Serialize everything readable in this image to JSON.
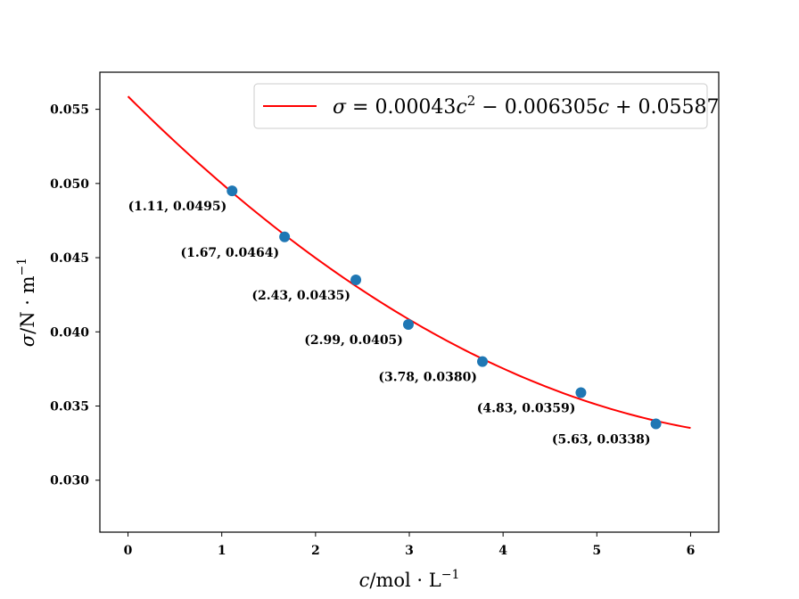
{
  "chart_data": {
    "type": "scatter",
    "title": "",
    "xlabel": {
      "var": "c",
      "rest": "/mol · L",
      "sup": "−1"
    },
    "ylabel": {
      "var": "σ",
      "rest": "/N · m",
      "sup": "−1"
    },
    "xlim": [
      -0.3,
      6.3
    ],
    "ylim": [
      0.0265,
      0.0575
    ],
    "xticks": [
      0,
      1,
      2,
      3,
      4,
      5,
      6
    ],
    "xtick_labels": [
      "0",
      "1",
      "2",
      "3",
      "4",
      "5",
      "6"
    ],
    "yticks": [
      0.03,
      0.035,
      0.04,
      0.045,
      0.05,
      0.055
    ],
    "ytick_labels": [
      "0.030",
      "0.035",
      "0.040",
      "0.045",
      "0.050",
      "0.055"
    ],
    "grid": false,
    "legend_position": "top-right",
    "series": [
      {
        "kind": "scatter",
        "color": "#1f77b4",
        "x": [
          1.11,
          1.67,
          2.43,
          2.99,
          3.78,
          4.83,
          5.63
        ],
        "y": [
          0.0495,
          0.0464,
          0.0435,
          0.0405,
          0.038,
          0.0359,
          0.0338
        ],
        "labels": [
          "(1.11, 0.0495)",
          "(1.67, 0.0464)",
          "(2.43, 0.0435)",
          "(2.99, 0.0405)",
          "(3.78, 0.0380)",
          "(4.83, 0.0359)",
          "(5.63, 0.0338)"
        ]
      },
      {
        "kind": "line",
        "name": "σ = 0.00043c² − 0.006305c + 0.05587",
        "color": "#ff0000",
        "coefficients": {
          "a": 0.00043,
          "b": -0.006305,
          "c": 0.05587
        },
        "x_range": [
          0,
          6
        ]
      }
    ],
    "legend": {
      "sym": "σ",
      "eq": " = 0.00043",
      "v1": "c",
      "sup": "2",
      "mid": " − 0.006305",
      "v2": "c",
      "end": " + 0.05587"
    }
  }
}
